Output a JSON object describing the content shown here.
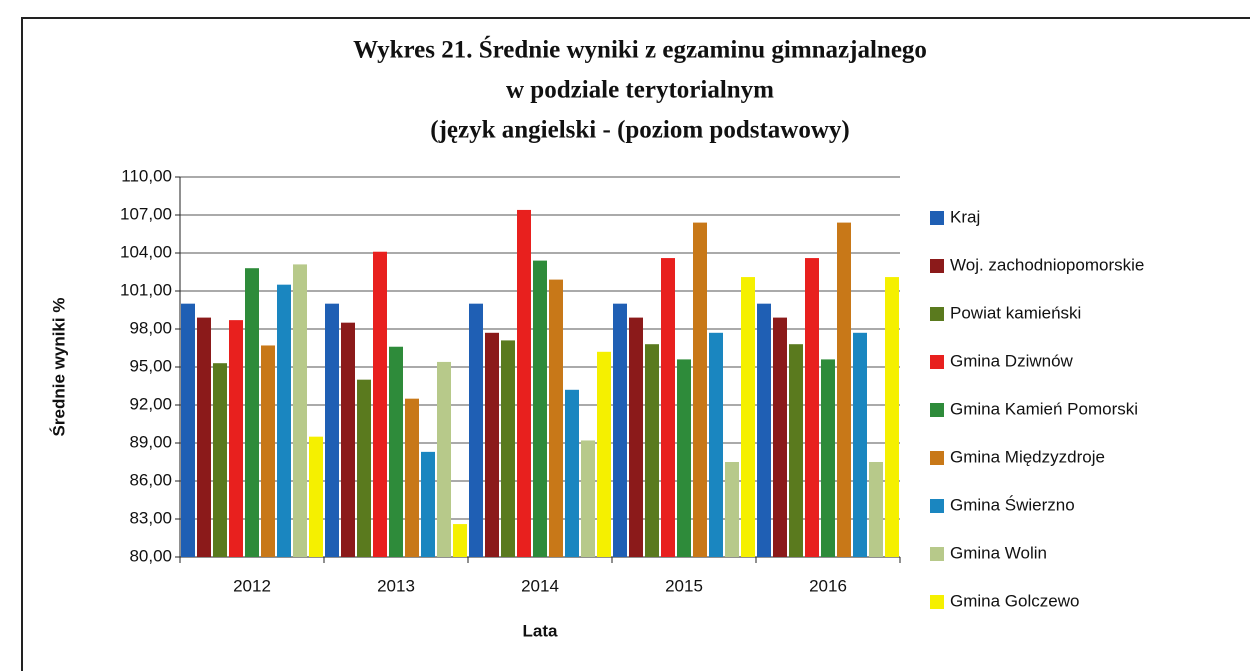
{
  "chart_data": {
    "type": "bar",
    "title": [
      "Wykres 21.   Średnie wyniki  z egzaminu gimnazjalnego",
      "w podziale terytorialnym",
      "(język angielski  - (poziom podstawowy)"
    ],
    "y_label": "Średnie    wyniki    %",
    "x_label": "Lata",
    "categories": [
      "2012",
      "2013",
      "2014",
      "2015",
      "2016"
    ],
    "ylim": [
      80,
      110
    ],
    "yticks": [
      {
        "value": 80,
        "label": "80,00"
      },
      {
        "value": 83,
        "label": "83,00"
      },
      {
        "value": 86,
        "label": "86,00"
      },
      {
        "value": 89,
        "label": "89,00"
      },
      {
        "value": 92,
        "label": "92,00"
      },
      {
        "value": 95,
        "label": "95,00"
      },
      {
        "value": 98,
        "label": "98,00"
      },
      {
        "value": 101,
        "label": "101,00"
      },
      {
        "value": 104,
        "label": "104,00"
      },
      {
        "value": 107,
        "label": "107,00"
      },
      {
        "value": 110,
        "label": "110,00"
      }
    ],
    "grid": true,
    "legend": "right",
    "series": [
      {
        "name": "Kraj",
        "color": "#1f5fb4",
        "values": [
          100,
          100,
          100,
          100,
          100
        ]
      },
      {
        "name": "Woj. zachodniopomorskie",
        "color": "#8b1a1a",
        "values": [
          98.9,
          98.5,
          97.7,
          98.9,
          98.9
        ]
      },
      {
        "name": "Powiat kamieński",
        "color": "#5a7a1e",
        "values": [
          95.3,
          94.0,
          97.1,
          96.8,
          96.8
        ]
      },
      {
        "name": "Gmina Dziwnów",
        "color": "#e8201e",
        "values": [
          98.7,
          104.1,
          107.4,
          103.6,
          103.6
        ]
      },
      {
        "name": "Gmina Kamień Pomorski",
        "color": "#2e8b3a",
        "values": [
          102.8,
          96.6,
          103.4,
          95.6,
          95.6
        ]
      },
      {
        "name": "Gmina Międzyzdroje",
        "color": "#c87818",
        "values": [
          96.7,
          92.5,
          101.9,
          106.4,
          106.4
        ]
      },
      {
        "name": "Gmina Świerzno",
        "color": "#1a86c0",
        "values": [
          101.5,
          88.3,
          93.2,
          97.7,
          97.7
        ]
      },
      {
        "name": "Gmina Wolin",
        "color": "#b7c98a",
        "values": [
          103.1,
          95.4,
          89.2,
          87.5,
          87.5
        ]
      },
      {
        "name": "Gmina Golczewo",
        "color": "#f5f000",
        "values": [
          89.5,
          82.6,
          96.2,
          102.1,
          102.1
        ]
      }
    ]
  }
}
